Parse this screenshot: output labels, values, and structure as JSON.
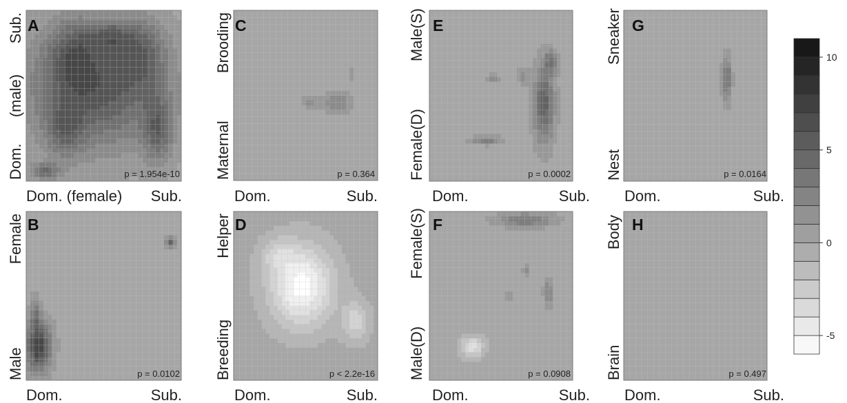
{
  "chart_data": [
    {
      "type": "heatmap",
      "panel": "A",
      "xlabel": "Dom. (female) Sub.",
      "ylabel": "Dom. (male) Sub.",
      "x_labels": [
        "Dom. (female)",
        "Sub."
      ],
      "y_labels": [
        "Dom.",
        "(male)",
        "Sub."
      ],
      "p_value": "p = 1.954e-10",
      "blobs": [
        [
          0.45,
          0.55,
          0.55,
          0.45,
          6
        ],
        [
          0.3,
          0.75,
          0.2,
          0.25,
          3
        ],
        [
          0.75,
          0.75,
          0.2,
          0.25,
          3
        ],
        [
          0.85,
          0.3,
          0.12,
          0.25,
          4
        ],
        [
          0.12,
          0.06,
          0.12,
          0.06,
          4
        ],
        [
          0.25,
          0.3,
          0.15,
          0.2,
          3
        ],
        [
          0.55,
          0.85,
          0.2,
          0.1,
          3
        ]
      ]
    },
    {
      "type": "heatmap",
      "panel": "B",
      "xlabel": "Dom. Sub.",
      "ylabel": "Male Female",
      "x_labels": [
        "Dom.",
        "Sub."
      ],
      "y_labels": [
        "Male",
        "Female"
      ],
      "p_value": "p = 0.0102",
      "blobs": [
        [
          0.08,
          0.2,
          0.1,
          0.18,
          7.5
        ],
        [
          0.06,
          0.4,
          0.04,
          0.12,
          3
        ],
        [
          0.93,
          0.82,
          0.04,
          0.04,
          5
        ]
      ]
    },
    {
      "type": "heatmap",
      "panel": "C",
      "xlabel": "Dom. Sub.",
      "ylabel": "Maternal Brooding",
      "x_labels": [
        "Dom.",
        "Sub."
      ],
      "y_labels": [
        "Maternal",
        "Brooding"
      ],
      "p_value": "p = 0.364",
      "blobs": [
        [
          0.72,
          0.46,
          0.12,
          0.08,
          2.5
        ],
        [
          0.53,
          0.46,
          0.06,
          0.05,
          2
        ],
        [
          0.82,
          0.62,
          0.03,
          0.04,
          1.5
        ]
      ]
    },
    {
      "type": "heatmap",
      "panel": "D",
      "xlabel": "Dom. Sub.",
      "ylabel": "Breeding Helper",
      "x_labels": [
        "Dom.",
        "Sub."
      ],
      "y_labels": [
        "Breeding",
        "Helper"
      ],
      "p_value": "p < 2.2e-16",
      "blobs": [
        [
          0.47,
          0.56,
          0.28,
          0.3,
          -6
        ],
        [
          0.85,
          0.35,
          0.12,
          0.15,
          -3
        ],
        [
          0.3,
          0.75,
          0.15,
          0.12,
          -2
        ]
      ]
    },
    {
      "type": "heatmap",
      "panel": "E",
      "xlabel": "Dom. Sub.",
      "ylabel": "Female(D) Male(S)",
      "x_labels": [
        "Dom.",
        "Sub."
      ],
      "y_labels": [
        "Female(D)",
        "Male(S)"
      ],
      "p_value": "p = 0.0002",
      "blobs": [
        [
          0.8,
          0.45,
          0.09,
          0.28,
          5
        ],
        [
          0.85,
          0.7,
          0.06,
          0.08,
          3.5
        ],
        [
          0.4,
          0.24,
          0.13,
          0.03,
          3
        ],
        [
          0.45,
          0.6,
          0.06,
          0.03,
          2.5
        ],
        [
          0.65,
          0.62,
          0.05,
          0.06,
          2
        ]
      ]
    },
    {
      "type": "heatmap",
      "panel": "F",
      "xlabel": "Dom. Sub.",
      "ylabel": "Male(D) Female(S)",
      "x_labels": [
        "Dom.",
        "Sub."
      ],
      "y_labels": [
        "Male(D)",
        "Female(S)"
      ],
      "p_value": "p = 0.0908",
      "blobs": [
        [
          0.67,
          0.95,
          0.25,
          0.05,
          3.5
        ],
        [
          0.83,
          0.52,
          0.04,
          0.1,
          2.5
        ],
        [
          0.68,
          0.65,
          0.03,
          0.04,
          2
        ],
        [
          0.3,
          0.2,
          0.1,
          0.08,
          -4
        ],
        [
          0.55,
          0.5,
          0.04,
          0.04,
          1.5
        ]
      ]
    },
    {
      "type": "heatmap",
      "panel": "G",
      "xlabel": "Dom. Sub.",
      "ylabel": "Nest Sneaker",
      "x_labels": [
        "Dom.",
        "Sub."
      ],
      "y_labels": [
        "Nest",
        "Sneaker"
      ],
      "p_value": "p = 0.0164",
      "blobs": [
        [
          0.72,
          0.6,
          0.04,
          0.16,
          4
        ]
      ]
    },
    {
      "type": "heatmap",
      "panel": "H",
      "xlabel": "Dom. Sub.",
      "ylabel": "Brain Body",
      "x_labels": [
        "Dom.",
        "Sub."
      ],
      "y_labels": [
        "Brain",
        "Body"
      ],
      "p_value": "p = 0.497",
      "blobs": []
    }
  ],
  "colorbar": {
    "range": [
      -6,
      11
    ],
    "levels": [
      -6,
      -5,
      -4,
      -3,
      -2,
      -1,
      0,
      1,
      2,
      3,
      4,
      5,
      6,
      7,
      8,
      9,
      10,
      11
    ],
    "ticks": [
      -5,
      0,
      5,
      10
    ],
    "tick_labels": [
      "-5",
      "0",
      "5",
      "10"
    ]
  },
  "colors": {
    "low": "#ffffff",
    "mid": "#a6a6a6",
    "high": "#111111",
    "grid": "#c2c2c2",
    "frame": "#7a7a7a"
  }
}
